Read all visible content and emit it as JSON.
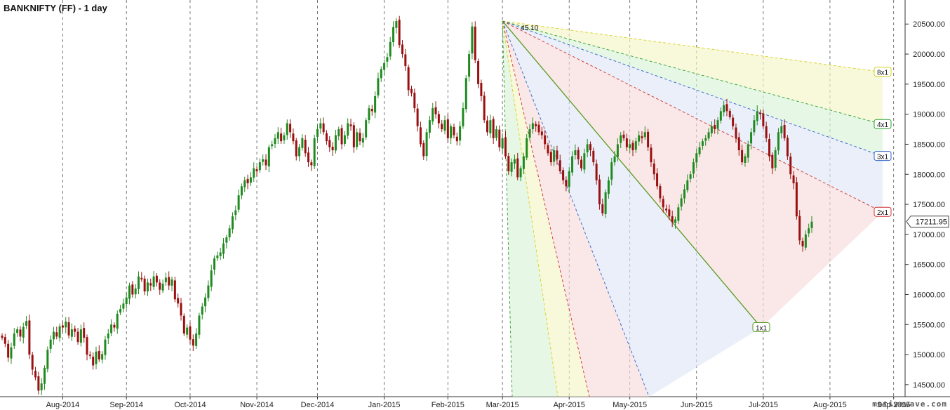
{
  "chart_data": {
    "type": "candlestick",
    "title": "BANKNIFTY (FF) - 1 day",
    "watermark": "motivewave.com",
    "last_price_label": "17211.95",
    "y_ticks": [
      "14500.00",
      "15000.00",
      "15500.00",
      "16000.00",
      "16500.00",
      "17000.00",
      "17500.00",
      "18000.00",
      "18500.00",
      "19000.00",
      "19500.00",
      "20000.00",
      "20500.00"
    ],
    "ylim": [
      14300,
      20900
    ],
    "x_ticks": [
      "Aug-2014",
      "Sep-2014",
      "Oct-2014",
      "Nov-2014",
      "Dec-2014",
      "Jan-2015",
      "Feb-2015",
      "Mar-2015",
      "Apr-2015",
      "May-2015",
      "Jun-2015",
      "Jul-2015",
      "Aug-2015",
      "Sep-2015"
    ],
    "grid": "vertical dashed at month starts",
    "colors": {
      "up": "#1f8a1f",
      "down": "#9a1010",
      "background": "#ffffff"
    },
    "series_close": [
      15280,
      15180,
      14950,
      15120,
      15350,
      15420,
      15300,
      15460,
      15560,
      15000,
      14750,
      14620,
      14400,
      14520,
      14780,
      15080,
      15250,
      15380,
      15300,
      15470,
      15450,
      15550,
      15320,
      15420,
      15380,
      15210,
      15420,
      15280,
      15000,
      14980,
      14820,
      15050,
      14920,
      15010,
      15250,
      15350,
      15500,
      15450,
      15680,
      15760,
      15850,
      15950,
      16150,
      16000,
      16100,
      16300,
      16250,
      16050,
      16200,
      16150,
      16300,
      16200,
      16080,
      16180,
      16280,
      16150,
      16250,
      15920,
      15850,
      15650,
      15350,
      15450,
      15250,
      15150,
      15350,
      15650,
      15800,
      15950,
      16150,
      16400,
      16600,
      16650,
      16700,
      16850,
      16950,
      17100,
      17300,
      17400,
      17650,
      17800,
      17900,
      17850,
      17950,
      18100,
      18050,
      18200,
      18250,
      18150,
      18450,
      18500,
      18600,
      18700,
      18550,
      18650,
      18850,
      18700,
      18550,
      18300,
      18450,
      18600,
      18350,
      18200,
      18150,
      18600,
      18750,
      18850,
      18700,
      18550,
      18450,
      18400,
      18650,
      18750,
      18500,
      18650,
      18850,
      18800,
      18450,
      18700,
      18550,
      18600,
      18900,
      19100,
      19050,
      19300,
      19600,
      19750,
      19850,
      19950,
      20200,
      20450,
      20550,
      20150,
      20000,
      19800,
      19400,
      19350,
      19100,
      18800,
      18500,
      18300,
      18700,
      18900,
      19100,
      19000,
      18850,
      18750,
      18900,
      18600,
      18800,
      18650,
      18550,
      18800,
      19100,
      19600,
      20000,
      20460,
      19900,
      19500,
      19300,
      18900,
      18700,
      18900,
      18600,
      18750,
      18450,
      18600,
      18300,
      18050,
      18200,
      18250,
      17950,
      18100,
      18300,
      18600,
      18750,
      18850,
      18800,
      18700,
      18650,
      18500,
      18350,
      18200,
      18400,
      18250,
      18050,
      17900,
      17800,
      18050,
      18300,
      18400,
      18250,
      18100,
      18350,
      18500,
      18400,
      18200,
      17900,
      17500,
      17350,
      17700,
      17900,
      18200,
      18300,
      18500,
      18650,
      18600,
      18450,
      18500,
      18400,
      18550,
      18650,
      18600,
      18700,
      18450,
      18200,
      18000,
      17800,
      17600,
      17450,
      17400,
      17300,
      17200,
      17250,
      17450,
      17600,
      17750,
      17900,
      18000,
      18200,
      18350,
      18450,
      18550,
      18600,
      18700,
      18800,
      18750,
      18900,
      19050,
      19150,
      19050,
      18950,
      18800,
      18600,
      18400,
      18200,
      18300,
      18500,
      18700,
      18900,
      19050,
      19000,
      18800,
      18600,
      18300,
      18100,
      18400,
      18700,
      18800,
      18600,
      18300,
      18000,
      17850,
      17300,
      16900,
      16800,
      17000,
      17100,
      17211.95
    ],
    "series_open_offsets_note": "candles derived from close series",
    "gann_fan": {
      "anchor_label": "45.10",
      "anchor_price": 20550,
      "lines": [
        {
          "label": "8x1",
          "end_price": 19700,
          "color": "#d8d020"
        },
        {
          "label": "4x1",
          "end_price": 18830,
          "color": "#2ea02e"
        },
        {
          "label": "3x1",
          "end_price": 18300,
          "color": "#3060c8"
        },
        {
          "label": "2x1",
          "end_price": 17370,
          "color": "#d03030"
        },
        {
          "label": "1x1",
          "end_price": 15450,
          "color": "#5a9a20"
        }
      ]
    }
  }
}
